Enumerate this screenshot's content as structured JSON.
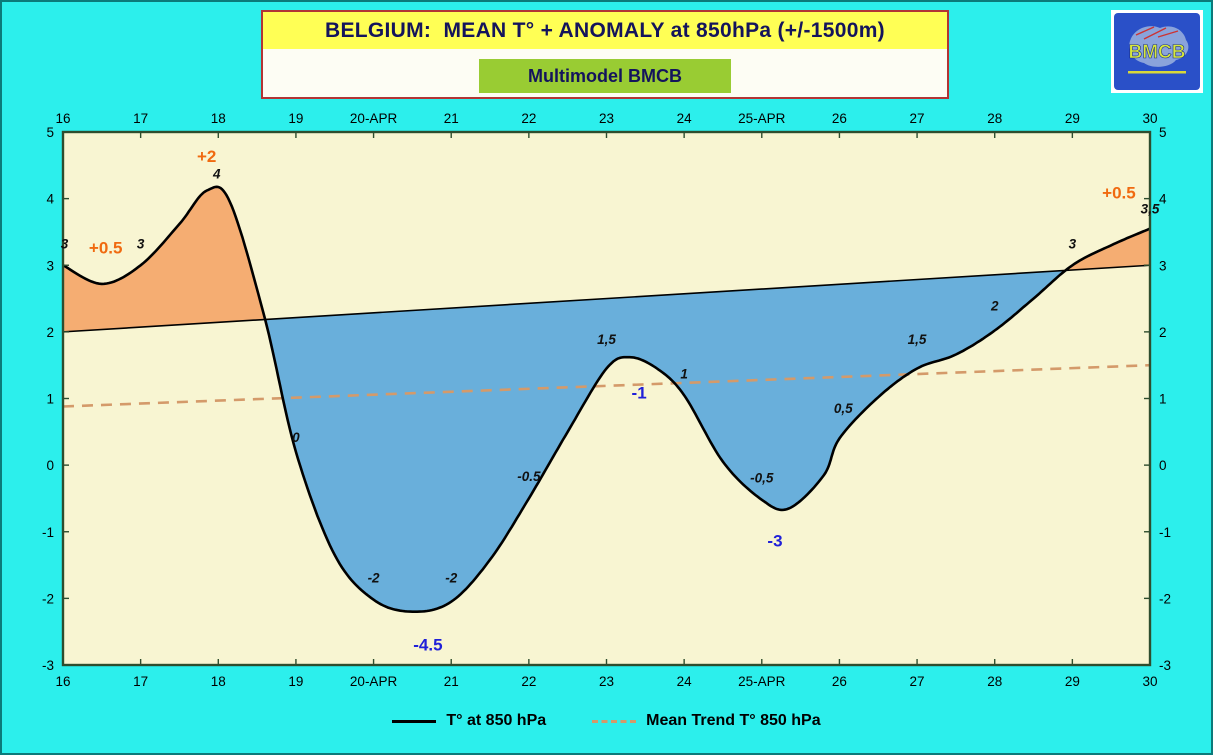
{
  "header": {
    "title": "BELGIUM:  MEAN T° + ANOMALY at 850hPa (+/-1500m)",
    "subtitle": "Multimodel BMCB",
    "logo_text": "BMCB"
  },
  "legend": {
    "temperature_label": "T° at 850 hPa",
    "trend_label": "Mean Trend T° 850 hPa"
  },
  "colors": {
    "page_background": "#2CEFEC",
    "title_background": "#FFFF55",
    "subtitle_background": "#99CC33",
    "title_text": "#14145C",
    "plot_background": "#F8F5D2",
    "positive_fill": "#F5AD72",
    "negative_fill": "#69AFDB",
    "positive_label": "#F06A10",
    "negative_label": "#2020D8",
    "trend_line": "#D49A6A"
  },
  "chart_data": {
    "type": "line",
    "title": "BELGIUM:  MEAN T° + ANOMALY at 850hPa (+/-1500m)",
    "subtitle": "Multimodel BMCB",
    "xlim": [
      16,
      30
    ],
    "ylim": [
      -3,
      5
    ],
    "grid": false,
    "plot_bg": "#F8F5D2",
    "x_ticks": [
      {
        "day": 16,
        "label": "16"
      },
      {
        "day": 17,
        "label": "17"
      },
      {
        "day": 18,
        "label": "18"
      },
      {
        "day": 19,
        "label": "19"
      },
      {
        "day": 20,
        "label": "20-APR"
      },
      {
        "day": 21,
        "label": "21"
      },
      {
        "day": 22,
        "label": "22"
      },
      {
        "day": 23,
        "label": "23"
      },
      {
        "day": 24,
        "label": "24"
      },
      {
        "day": 25,
        "label": "25-APR"
      },
      {
        "day": 26,
        "label": "26"
      },
      {
        "day": 27,
        "label": "27"
      },
      {
        "day": 28,
        "label": "28"
      },
      {
        "day": 29,
        "label": "29"
      },
      {
        "day": 30,
        "label": "30"
      }
    ],
    "y_ticks": [
      5,
      4,
      3,
      2,
      1,
      0,
      -1,
      -2,
      -3
    ],
    "fills": {
      "above": "#F5AD72",
      "below": "#69AFDB"
    },
    "anomaly_colors": {
      "positive": "#F06A10",
      "negative": "#2020D8"
    },
    "series": [
      {
        "name": "T° at 850 hPa",
        "line": "solid",
        "color": "#000000",
        "width": 2.6,
        "days": [
          16,
          17,
          18,
          19,
          20,
          21,
          22,
          23,
          24,
          25,
          26,
          27,
          28,
          29,
          30
        ],
        "values": [
          3,
          3,
          4,
          0,
          -2,
          -2,
          -0.5,
          1.5,
          1,
          -0.5,
          0.5,
          1.5,
          2,
          3,
          3.5
        ],
        "draw_points": [
          [
            16,
            3
          ],
          [
            16.5,
            2.72
          ],
          [
            17,
            3
          ],
          [
            17.5,
            3.62
          ],
          [
            17.85,
            4.12
          ],
          [
            18.15,
            3.95
          ],
          [
            18.6,
            2.2
          ],
          [
            19,
            0.2
          ],
          [
            19.5,
            -1.35
          ],
          [
            20,
            -2.02
          ],
          [
            20.5,
            -2.2
          ],
          [
            21,
            -2.05
          ],
          [
            21.5,
            -1.42
          ],
          [
            22,
            -0.5
          ],
          [
            22.5,
            0.5
          ],
          [
            23,
            1.45
          ],
          [
            23.3,
            1.62
          ],
          [
            23.65,
            1.45
          ],
          [
            24,
            1.05
          ],
          [
            24.5,
            0.05
          ],
          [
            25,
            -0.52
          ],
          [
            25.35,
            -0.65
          ],
          [
            25.8,
            -0.15
          ],
          [
            26,
            0.4
          ],
          [
            26.5,
            1.02
          ],
          [
            27,
            1.45
          ],
          [
            27.5,
            1.66
          ],
          [
            28,
            2.02
          ],
          [
            28.5,
            2.5
          ],
          [
            29,
            3.0
          ],
          [
            29.5,
            3.3
          ],
          [
            30,
            3.55
          ]
        ]
      },
      {
        "name": "Mean T° (anomaly reference)",
        "line": "solid",
        "color": "#000000",
        "width": 1.6,
        "points": [
          [
            16,
            2
          ],
          [
            30,
            3
          ]
        ]
      },
      {
        "name": "Mean Trend T° 850 hPa",
        "line": "dashed",
        "color": "#D49A6A",
        "width": 2.6,
        "points": [
          [
            16,
            0.88
          ],
          [
            30,
            1.5
          ]
        ]
      }
    ],
    "point_labels": [
      {
        "text": "3",
        "day": 16.02,
        "value": 3.25
      },
      {
        "text": "3",
        "day": 17.0,
        "value": 3.25
      },
      {
        "text": "4",
        "day": 17.98,
        "value": 4.3
      },
      {
        "text": "0",
        "day": 19.0,
        "value": 0.35
      },
      {
        "text": "-2",
        "day": 20.0,
        "value": -1.76
      },
      {
        "text": "-2",
        "day": 21.0,
        "value": -1.76
      },
      {
        "text": "-0.5",
        "day": 22.0,
        "value": -0.24
      },
      {
        "text": "1,5",
        "day": 23.0,
        "value": 1.82
      },
      {
        "text": "1",
        "day": 24.0,
        "value": 1.3
      },
      {
        "text": "-0,5",
        "day": 25.0,
        "value": -0.26
      },
      {
        "text": "0,5",
        "day": 26.05,
        "value": 0.78
      },
      {
        "text": "1,5",
        "day": 27.0,
        "value": 1.82
      },
      {
        "text": "2",
        "day": 28.0,
        "value": 2.32
      },
      {
        "text": "3",
        "day": 29.0,
        "value": 3.25
      },
      {
        "text": "3,5",
        "day": 30.0,
        "value": 3.78
      }
    ],
    "anomaly_labels": [
      {
        "text": "+0.5",
        "day": 16.55,
        "value": 3.18,
        "type": "pos"
      },
      {
        "text": "+2",
        "day": 17.85,
        "value": 4.55,
        "type": "pos"
      },
      {
        "text": "-4.5",
        "day": 20.7,
        "value": -2.78,
        "type": "neg"
      },
      {
        "text": "-1",
        "day": 23.42,
        "value": 1.0,
        "type": "neg"
      },
      {
        "text": "-3",
        "day": 25.17,
        "value": -1.22,
        "type": "neg"
      },
      {
        "text": "+0.5",
        "day": 29.6,
        "value": 4.0,
        "type": "pos"
      }
    ],
    "legend_position": "bottom"
  }
}
